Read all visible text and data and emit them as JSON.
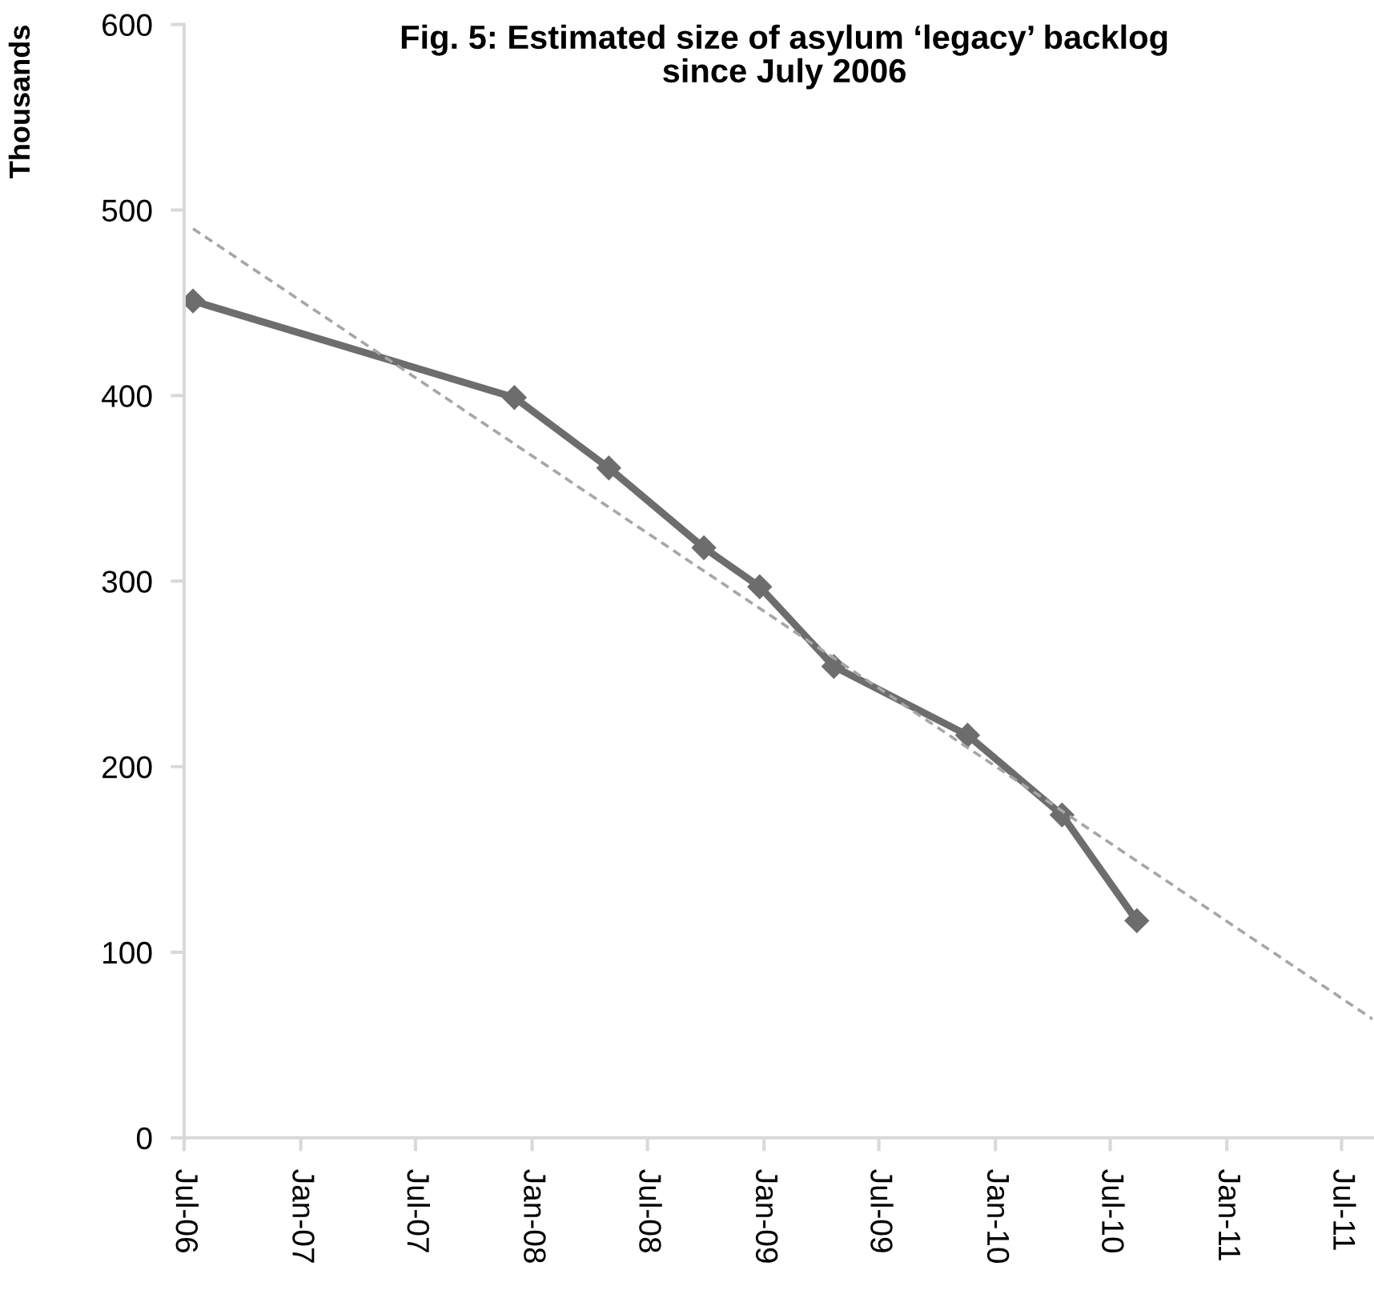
{
  "chart_data": {
    "type": "line",
    "title": "Fig. 5: Estimated size of asylum ‘legacy’ backlog\nsince July 2006",
    "ylabel": "Thousands",
    "series": [
      {
        "color": "#6d6d6d",
        "marker": "diamond",
        "line_style": "solid",
        "x": [
          "2006-07-15",
          "2007-12-04",
          "2008-05-01",
          "2008-09-28",
          "2008-12-25",
          "2009-04-21",
          "2009-11-18",
          "2010-04-16",
          "2010-08-12"
        ],
        "values": [
          451,
          399,
          361,
          318,
          297,
          254,
          217,
          174,
          117
        ]
      },
      {
        "color": "#a6a6a6",
        "marker": "none",
        "line_style": "dashed",
        "x": [
          "2006-07-15",
          "2011-08-19"
        ],
        "values": [
          490,
          64
        ]
      }
    ],
    "xlim": [
      "2006-07-01",
      "2011-08-19"
    ],
    "xticks": [
      {
        "value": "2006-07-01",
        "label": "Jul-06"
      },
      {
        "value": "2007-01-01",
        "label": "Jan-07"
      },
      {
        "value": "2007-07-01",
        "label": "Jul-07"
      },
      {
        "value": "2008-01-01",
        "label": "Jan-08"
      },
      {
        "value": "2008-07-01",
        "label": "Jul-08"
      },
      {
        "value": "2009-01-01",
        "label": "Jan-09"
      },
      {
        "value": "2009-07-01",
        "label": "Jul-09"
      },
      {
        "value": "2010-01-01",
        "label": "Jan-10"
      },
      {
        "value": "2010-07-01",
        "label": "Jul-10"
      },
      {
        "value": "2011-01-01",
        "label": "Jan-11"
      },
      {
        "value": "2011-07-01",
        "label": "Jul-11"
      }
    ],
    "ylim": [
      0,
      600
    ],
    "yticks": [
      0,
      100,
      200,
      300,
      400,
      500,
      600
    ],
    "grid": false
  }
}
